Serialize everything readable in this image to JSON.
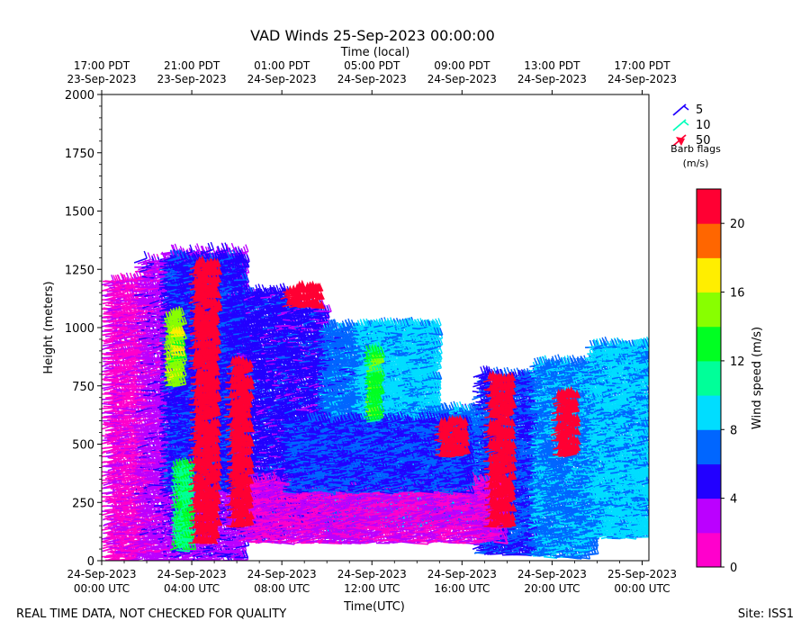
{
  "chart_data": {
    "type": "wind-barb",
    "title": "VAD Winds 25-Sep-2023 00:00:00",
    "top_axis_label": "Time (local)",
    "xlabel": "Time(UTC)",
    "ylabel": "Height (meters)",
    "ylim": [
      0,
      2000
    ],
    "yticks": [
      0,
      250,
      500,
      750,
      1000,
      1250,
      1500,
      1750,
      2000
    ],
    "xlim_hours": [
      0,
      24.3
    ],
    "bottom_ticks": [
      {
        "h": 0,
        "line1": "24-Sep-2023",
        "line2": "00:00 UTC"
      },
      {
        "h": 4,
        "line1": "24-Sep-2023",
        "line2": "04:00 UTC"
      },
      {
        "h": 8,
        "line1": "24-Sep-2023",
        "line2": "08:00 UTC"
      },
      {
        "h": 12,
        "line1": "24-Sep-2023",
        "line2": "12:00 UTC"
      },
      {
        "h": 16,
        "line1": "24-Sep-2023",
        "line2": "16:00 UTC"
      },
      {
        "h": 20,
        "line1": "24-Sep-2023",
        "line2": "20:00 UTC"
      },
      {
        "h": 24,
        "line1": "25-Sep-2023",
        "line2": "00:00 UTC"
      }
    ],
    "top_ticks": [
      {
        "h": 0,
        "line1": "17:00 PDT",
        "line2": "23-Sep-2023"
      },
      {
        "h": 4,
        "line1": "21:00 PDT",
        "line2": "23-Sep-2023"
      },
      {
        "h": 8,
        "line1": "01:00 PDT",
        "line2": "24-Sep-2023"
      },
      {
        "h": 12,
        "line1": "05:00 PDT",
        "line2": "24-Sep-2023"
      },
      {
        "h": 16,
        "line1": "09:00 PDT",
        "line2": "24-Sep-2023"
      },
      {
        "h": 20,
        "line1": "13:00 PDT",
        "line2": "24-Sep-2023"
      },
      {
        "h": 24,
        "line1": "17:00 PDT",
        "line2": "24-Sep-2023"
      }
    ],
    "barb_legend": {
      "items": [
        {
          "label": "5",
          "color": "#2200ff"
        },
        {
          "label": "10",
          "color": "#00ffbb"
        },
        {
          "label": "50",
          "color": "#ff0033"
        }
      ],
      "title": "Barb flags",
      "units": "(m/s)"
    },
    "colorbar": {
      "label": "Wind speed (m/s)",
      "min": 0,
      "max": 22,
      "ticks": [
        0,
        4,
        8,
        12,
        16,
        20
      ],
      "colors": [
        "#ff00cc",
        "#bb00ff",
        "#2200ff",
        "#0066ff",
        "#00ddff",
        "#00ff99",
        "#00ff22",
        "#88ff00",
        "#ffee00",
        "#ff6600",
        "#ff0033"
      ]
    },
    "layers": [
      {
        "t0": 0.0,
        "t1": 1.5,
        "h0": 0,
        "h1": 1200,
        "speed": 1.5
      },
      {
        "t0": 1.5,
        "t1": 2.6,
        "h0": 0,
        "h1": 1280,
        "speed": 3
      },
      {
        "t0": 2.6,
        "t1": 6.0,
        "h0": 0,
        "h1": 1330,
        "speed": 3.5
      },
      {
        "t0": 2.6,
        "t1": 6.0,
        "h0": 300,
        "h1": 1300,
        "speed": 5.5
      },
      {
        "t0": 6.0,
        "t1": 7.8,
        "h0": 100,
        "h1": 1150,
        "speed": 5
      },
      {
        "t0": 7.8,
        "t1": 9.6,
        "h0": 150,
        "h1": 1080,
        "speed": 5
      },
      {
        "t0": 9.6,
        "t1": 11.2,
        "h0": 100,
        "h1": 1000,
        "speed": 7
      },
      {
        "t0": 11.2,
        "t1": 14.5,
        "h0": 150,
        "h1": 1000,
        "speed": 8.5
      },
      {
        "t0": 14.5,
        "t1": 16.5,
        "h0": 150,
        "h1": 650,
        "speed": 7
      },
      {
        "t0": 16.5,
        "t1": 19.0,
        "h0": 30,
        "h1": 800,
        "speed": 6
      },
      {
        "t0": 19.0,
        "t1": 21.5,
        "h0": 20,
        "h1": 850,
        "speed": 7.5
      },
      {
        "t0": 21.5,
        "t1": 24.0,
        "h0": 100,
        "h1": 920,
        "speed": 8.5
      },
      {
        "t0": 6.0,
        "t1": 17.5,
        "h0": 80,
        "h1": 350,
        "speed": 2
      },
      {
        "t0": 8.0,
        "t1": 16.0,
        "h0": 300,
        "h1": 600,
        "speed": 6
      },
      {
        "t0": 3.1,
        "t1": 3.6,
        "h0": 50,
        "h1": 400,
        "speed": 12
      },
      {
        "t0": 2.8,
        "t1": 3.2,
        "h0": 750,
        "h1": 1050,
        "speed": 15
      },
      {
        "t0": 11.7,
        "t1": 12.0,
        "h0": 600,
        "h1": 900,
        "speed": 13
      }
    ],
    "high_wind_columns": [
      {
        "t0": 3.9,
        "t1": 4.8,
        "h0": 80,
        "h1": 1280,
        "speed": 21
      },
      {
        "t0": 17.0,
        "t1": 17.9,
        "h0": 150,
        "h1": 780,
        "speed": 21
      },
      {
        "t0": 8.0,
        "t1": 9.3,
        "h0": 1090,
        "h1": 1160,
        "speed": 21
      },
      {
        "t0": 5.5,
        "t1": 6.2,
        "h0": 150,
        "h1": 850,
        "speed": 21
      },
      {
        "t0": 20.0,
        "t1": 20.7,
        "h0": 450,
        "h1": 700,
        "speed": 21
      },
      {
        "t0": 14.8,
        "t1": 15.9,
        "h0": 450,
        "h1": 580,
        "speed": 21
      }
    ]
  },
  "footer": {
    "left": "REAL TIME DATA, NOT CHECKED FOR QUALITY",
    "right": "Site: ISS1"
  }
}
